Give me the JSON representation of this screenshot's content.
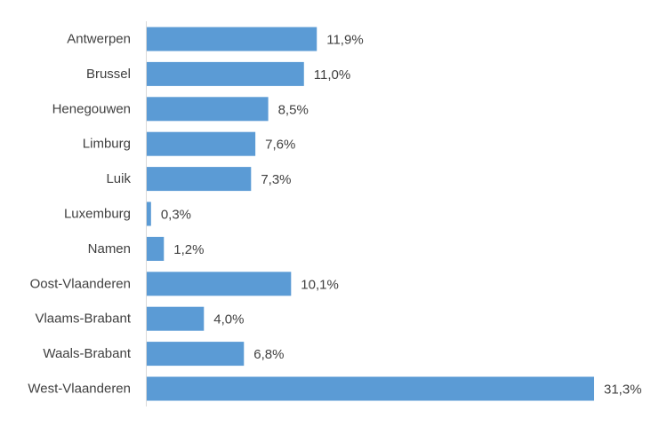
{
  "chart_data": {
    "type": "bar",
    "orientation": "horizontal",
    "categories": [
      "Antwerpen",
      "Brussel",
      "Henegouwen",
      "Limburg",
      "Luik",
      "Luxemburg",
      "Namen",
      "Oost-Vlaanderen",
      "Vlaams-Brabant",
      "Waals-Brabant",
      "West-Vlaanderen"
    ],
    "values": [
      11.9,
      11.0,
      8.5,
      7.6,
      7.3,
      0.3,
      1.2,
      10.1,
      4.0,
      6.8,
      31.3
    ],
    "value_labels": [
      "11,9%",
      "11,0%",
      "8,5%",
      "7,6%",
      "7,3%",
      "0,3%",
      "1,2%",
      "10,1%",
      "4,0%",
      "6,8%",
      "31,3%"
    ],
    "bar_color": "#5b9bd5",
    "axis_color": "#d9d9d9",
    "xlim": [
      0,
      31.3
    ],
    "grid": false,
    "legend": "none"
  }
}
